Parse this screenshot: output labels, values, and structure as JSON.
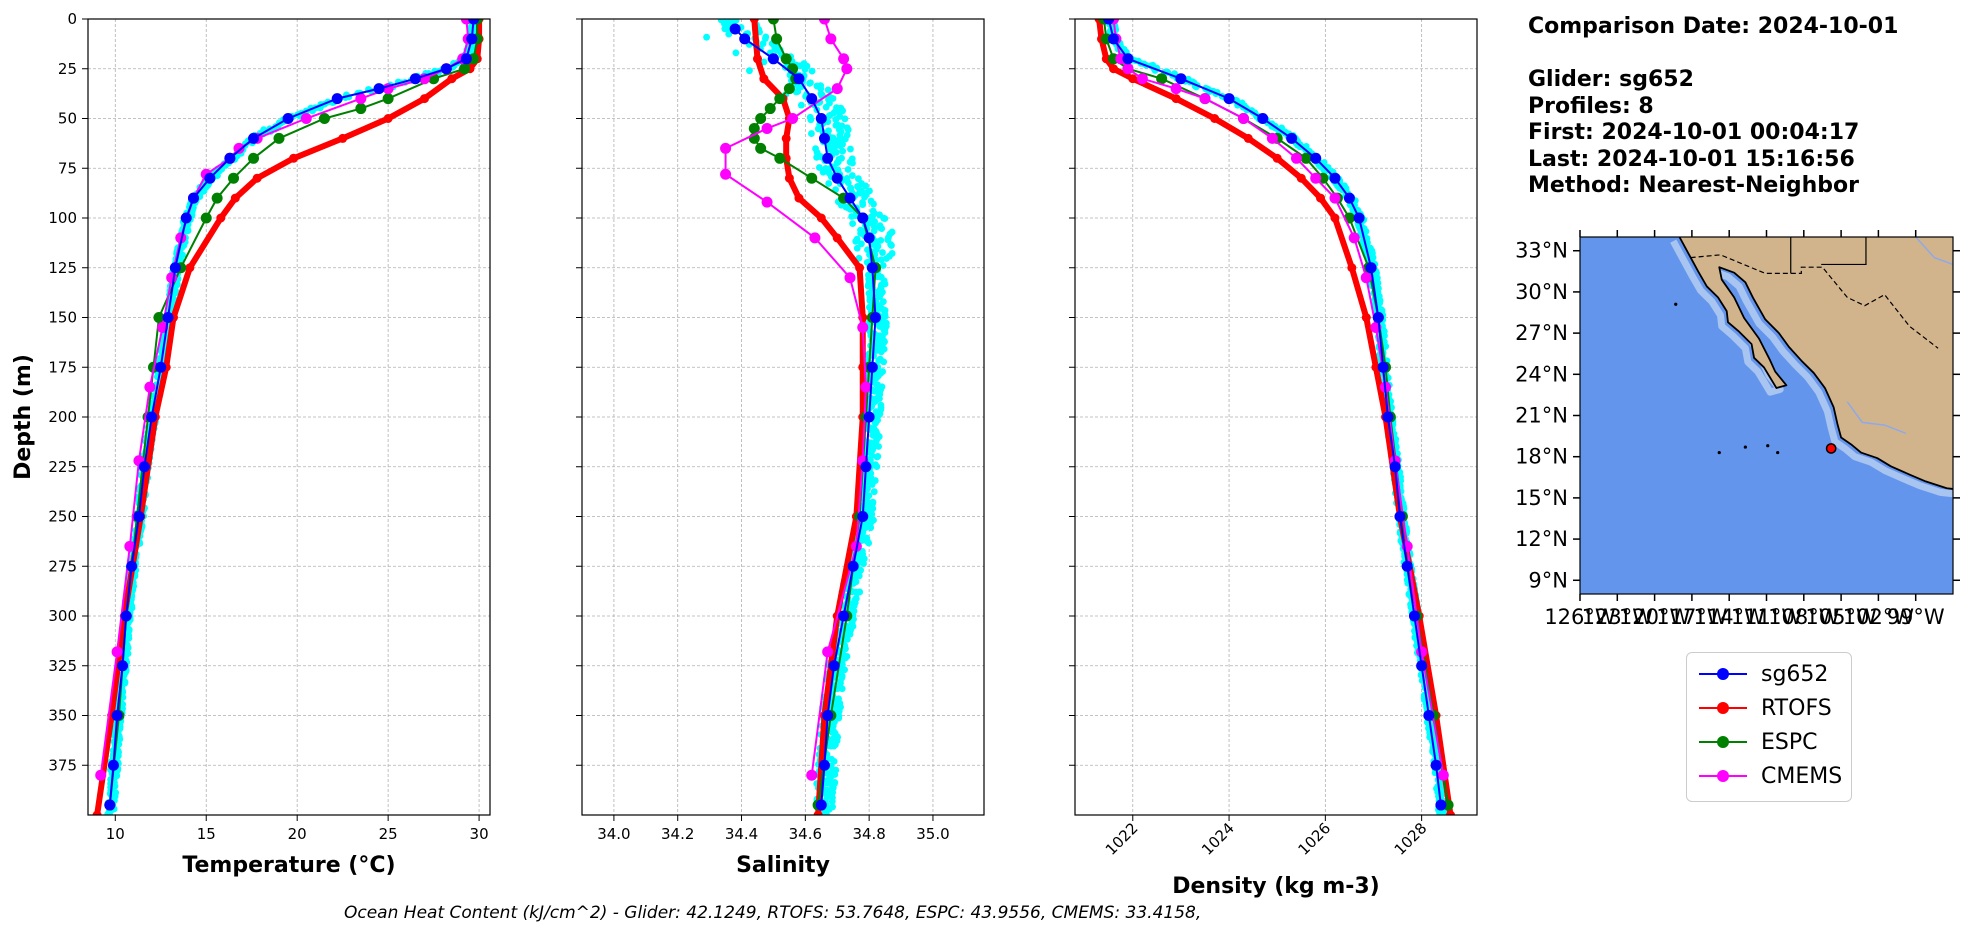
{
  "info": {
    "comparison_date": "Comparison Date: 2024-10-01",
    "glider": "Glider: sg652",
    "profiles": "Profiles: 8",
    "first": "First: 2024-10-01 00:04:17",
    "last": "Last: 2024-10-01 15:16:56",
    "method": "Method: Nearest-Neighbor"
  },
  "footer": "Ocean Heat Content (kJ/cm^2) - Glider: 42.1249,  RTOFS: 53.7648,  ESPC: 43.9556,  CMEMS: 33.4158,",
  "colors": {
    "sg652": "#0000ff",
    "RTOFS": "#ff0000",
    "ESPC": "#008000",
    "CMEMS": "#ff00ff",
    "raw": "#00ffff",
    "ocean": "#6495ed",
    "land": "#d2b48c",
    "shelf": "#a8c4f0"
  },
  "chart_data": [
    {
      "type": "line",
      "xlabel": "Temperature (°C)",
      "ylabel": "Depth (m)",
      "xlim": [
        8.5,
        30.6
      ],
      "ylim": [
        400,
        0
      ],
      "xticks": [
        10,
        15,
        20,
        25,
        30
      ],
      "xtick_labels": [
        "10",
        "15",
        "20",
        "25",
        "30"
      ],
      "yticks": [
        0,
        25,
        50,
        75,
        100,
        125,
        150,
        175,
        200,
        225,
        250,
        275,
        300,
        325,
        350,
        375
      ],
      "ytick_labels": [
        "0",
        "25",
        "50",
        "75",
        "100",
        "125",
        "150",
        "175",
        "200",
        "225",
        "250",
        "275",
        "300",
        "325",
        "350",
        "375"
      ],
      "grid": true,
      "series": [
        {
          "name": "sg652",
          "depth": [
            0,
            10,
            20,
            25,
            30,
            35,
            40,
            50,
            60,
            70,
            80,
            90,
            100,
            125,
            150,
            175,
            200,
            225,
            250,
            275,
            300,
            325,
            350,
            375,
            395
          ],
          "values": [
            29.7,
            29.6,
            29.3,
            28.2,
            26.5,
            24.5,
            22.2,
            19.5,
            17.6,
            16.3,
            15.2,
            14.3,
            13.9,
            13.3,
            12.9,
            12.5,
            12.0,
            11.6,
            11.3,
            10.9,
            10.6,
            10.4,
            10.1,
            9.9,
            9.7
          ]
        },
        {
          "name": "RTOFS",
          "depth": [
            0,
            10,
            20,
            25,
            30,
            40,
            50,
            60,
            70,
            80,
            90,
            100,
            125,
            150,
            175,
            200,
            250,
            300,
            350,
            400
          ],
          "values": [
            30.0,
            30.0,
            29.9,
            29.5,
            28.5,
            27.0,
            25.0,
            22.5,
            19.8,
            17.8,
            16.6,
            15.8,
            14.1,
            13.2,
            12.8,
            12.2,
            11.4,
            10.5,
            9.8,
            9.0
          ]
        },
        {
          "name": "ESPC",
          "depth": [
            0,
            10,
            20,
            25,
            30,
            40,
            45,
            50,
            60,
            70,
            80,
            90,
            100,
            125,
            150,
            175,
            200,
            250,
            300,
            350,
            395
          ],
          "values": [
            29.9,
            29.9,
            29.7,
            29.2,
            27.5,
            25.0,
            23.5,
            21.5,
            19.0,
            17.6,
            16.5,
            15.6,
            15.0,
            13.6,
            12.4,
            12.1,
            11.8,
            11.2,
            10.6,
            10.2,
            9.7
          ]
        },
        {
          "name": "CMEMS",
          "depth": [
            0,
            10,
            20,
            25,
            30,
            35,
            40,
            50,
            60,
            65,
            70,
            78,
            90,
            110,
            130,
            155,
            185,
            222,
            265,
            318,
            380
          ],
          "values": [
            29.3,
            29.4,
            29.1,
            28.2,
            27.0,
            25.0,
            23.5,
            20.5,
            17.8,
            16.8,
            16.3,
            15.0,
            14.3,
            13.6,
            13.1,
            12.6,
            11.9,
            11.3,
            10.8,
            10.1,
            9.2
          ]
        }
      ]
    },
    {
      "type": "line",
      "xlabel": "Salinity",
      "ylabel": "",
      "xlim": [
        33.9,
        35.16
      ],
      "ylim": [
        400,
        0
      ],
      "xticks": [
        34.0,
        34.2,
        34.4,
        34.6,
        34.8,
        35.0
      ],
      "xtick_labels": [
        "34.0",
        "34.2",
        "34.4",
        "34.6",
        "34.8",
        "35.0"
      ],
      "grid": true,
      "series": [
        {
          "name": "sg652",
          "depth": [
            5,
            10,
            20,
            30,
            40,
            50,
            60,
            70,
            80,
            90,
            100,
            110,
            125,
            150,
            175,
            200,
            225,
            250,
            275,
            300,
            325,
            350,
            375,
            395
          ],
          "values": [
            34.38,
            34.41,
            34.5,
            34.58,
            34.62,
            34.65,
            34.66,
            34.67,
            34.7,
            34.74,
            34.78,
            34.8,
            34.81,
            34.82,
            34.81,
            34.8,
            34.79,
            34.78,
            34.75,
            34.72,
            34.69,
            34.67,
            34.66,
            34.65
          ]
        },
        {
          "name": "RTOFS",
          "depth": [
            0,
            20,
            30,
            40,
            50,
            60,
            70,
            80,
            90,
            100,
            110,
            125,
            150,
            175,
            200,
            250,
            300,
            350,
            400
          ],
          "values": [
            34.44,
            34.45,
            34.47,
            34.53,
            34.55,
            34.54,
            34.54,
            34.55,
            34.58,
            34.65,
            34.7,
            34.77,
            34.78,
            34.78,
            34.78,
            34.76,
            34.7,
            34.66,
            34.64
          ]
        },
        {
          "name": "ESPC",
          "depth": [
            0,
            10,
            20,
            25,
            30,
            35,
            40,
            45,
            50,
            55,
            60,
            65,
            70,
            80,
            90,
            100,
            125,
            150,
            175,
            200,
            250,
            300,
            350,
            395
          ],
          "values": [
            34.5,
            34.51,
            34.54,
            34.56,
            34.57,
            34.55,
            34.52,
            34.49,
            34.46,
            34.44,
            34.44,
            34.46,
            34.52,
            34.62,
            34.72,
            34.78,
            34.82,
            34.81,
            34.8,
            34.79,
            34.77,
            34.73,
            34.68,
            34.64
          ]
        },
        {
          "name": "CMEMS",
          "depth": [
            0,
            10,
            20,
            25,
            35,
            50,
            55,
            65,
            78,
            92,
            110,
            130,
            155,
            185,
            222,
            265,
            318,
            380
          ],
          "values": [
            34.66,
            34.68,
            34.72,
            34.73,
            34.7,
            34.56,
            34.48,
            34.35,
            34.35,
            34.48,
            34.63,
            34.74,
            34.78,
            34.79,
            34.78,
            34.76,
            34.67,
            34.62
          ]
        }
      ]
    },
    {
      "type": "line",
      "xlabel": "Density (kg m-3)",
      "ylabel": "",
      "xlim": [
        1020.8,
        1029.15
      ],
      "ylim": [
        400,
        0
      ],
      "xticks": [
        1022,
        1024,
        1026,
        1028
      ],
      "xtick_labels": [
        "1022",
        "1024",
        "1026",
        "1028"
      ],
      "grid": true,
      "series": [
        {
          "name": "sg652",
          "depth": [
            0,
            10,
            20,
            30,
            40,
            50,
            60,
            70,
            80,
            90,
            100,
            125,
            150,
            175,
            200,
            225,
            250,
            275,
            300,
            325,
            350,
            375,
            395
          ],
          "values": [
            1021.5,
            1021.6,
            1021.9,
            1023.0,
            1024.0,
            1024.7,
            1025.3,
            1025.8,
            1026.2,
            1026.5,
            1026.7,
            1026.95,
            1027.1,
            1027.2,
            1027.3,
            1027.45,
            1027.55,
            1027.7,
            1027.85,
            1028.0,
            1028.15,
            1028.3,
            1028.4
          ]
        },
        {
          "name": "RTOFS",
          "depth": [
            0,
            10,
            20,
            25,
            30,
            40,
            50,
            60,
            70,
            80,
            90,
            100,
            125,
            150,
            175,
            200,
            250,
            300,
            350,
            400
          ],
          "values": [
            1021.3,
            1021.35,
            1021.45,
            1021.6,
            1022.0,
            1022.9,
            1023.7,
            1024.4,
            1025.0,
            1025.5,
            1025.9,
            1026.2,
            1026.55,
            1026.85,
            1027.05,
            1027.25,
            1027.55,
            1027.95,
            1028.3,
            1028.6
          ]
        },
        {
          "name": "ESPC",
          "depth": [
            0,
            10,
            20,
            25,
            30,
            40,
            50,
            60,
            70,
            80,
            90,
            100,
            125,
            150,
            175,
            200,
            250,
            300,
            350,
            395
          ],
          "values": [
            1021.4,
            1021.45,
            1021.6,
            1021.9,
            1022.6,
            1023.5,
            1024.3,
            1025.0,
            1025.6,
            1025.95,
            1026.25,
            1026.5,
            1026.9,
            1027.1,
            1027.25,
            1027.35,
            1027.6,
            1027.9,
            1028.25,
            1028.55
          ]
        },
        {
          "name": "CMEMS",
          "depth": [
            0,
            10,
            20,
            25,
            30,
            35,
            40,
            50,
            60,
            70,
            80,
            90,
            110,
            130,
            155,
            185,
            222,
            265,
            318,
            380
          ],
          "values": [
            1021.6,
            1021.65,
            1021.75,
            1021.9,
            1022.2,
            1022.9,
            1023.5,
            1024.3,
            1024.9,
            1025.4,
            1025.8,
            1026.2,
            1026.6,
            1026.85,
            1027.05,
            1027.25,
            1027.45,
            1027.7,
            1028.0,
            1028.45
          ]
        }
      ]
    },
    {
      "type": "map",
      "lon_range": [
        -126,
        -96
      ],
      "lat_range": [
        8,
        34
      ],
      "lat_tick_labels": [
        "33°N",
        "30°N",
        "27°N",
        "24°N",
        "21°N",
        "18°N",
        "15°N",
        "12°N",
        "9°N"
      ],
      "lat_ticks": [
        33,
        30,
        27,
        24,
        21,
        18,
        15,
        12,
        9
      ],
      "lon_tick_labels": [
        "126°W",
        "123°W",
        "120°W",
        "117°W",
        "114°W",
        "111°W",
        "108°W",
        "105°W",
        "102°W",
        "99°W"
      ],
      "lon_ticks": [
        -126,
        -123,
        -120,
        -117,
        -114,
        -111,
        -108,
        -105,
        -102,
        -99
      ],
      "glider_position": {
        "lon": -105.8,
        "lat": 18.6
      }
    }
  ]
}
